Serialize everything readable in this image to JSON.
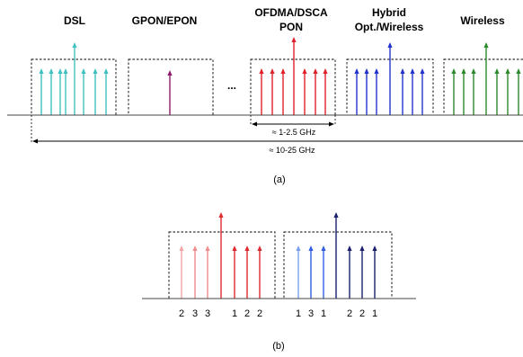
{
  "panel_a": {
    "labels": {
      "dsl": "DSL",
      "gpon": "GPON/EPON",
      "ofdma_line1": "OFDMA/DSCA",
      "ofdma_line2": "PON",
      "hybrid_line1": "Hybrid",
      "hybrid_line2": "Opt./Wireless",
      "wireless": "Wireless"
    },
    "ellipsis": "...",
    "span_inner": "≈ 1-2.5 GHz",
    "span_outer": "≈ 10-25 GHz",
    "caption": "(a)",
    "colors": {
      "dsl": "#3fc1c0",
      "gpon": "#8e1a6e",
      "ofdma": "#e0202a",
      "hybrid": "#2233cc",
      "wireless": "#2a8a2a"
    }
  },
  "panel_b": {
    "numbers_left": [
      "2",
      "3",
      "3",
      "1",
      "2",
      "2"
    ],
    "numbers_right": [
      "1",
      "3",
      "1",
      "2",
      "2",
      "1"
    ],
    "caption": "(b)",
    "colors": {
      "pink_light": "#f2a6a8",
      "pink": "#ee8c8e",
      "red": "#dd2a2e",
      "blue_light": "#7aa0ee",
      "blue": "#2f5fe0",
      "navy": "#1a1f6e"
    }
  }
}
